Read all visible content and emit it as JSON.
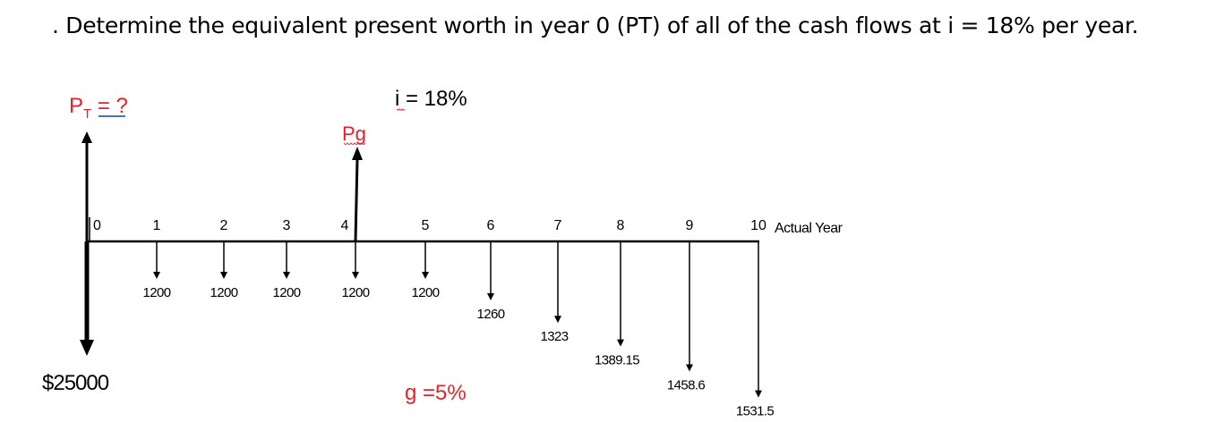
{
  "question": ". Determine the equivalent present worth in year 0 (PT) of all of the cash flows at i = 18% per year.",
  "diagram": {
    "pt_label": "P",
    "pt_subscript": "T",
    "pt_suffix": " = ?",
    "pg_label": "Pg",
    "interest_label": "i = 18%",
    "growth_label": "g =5%",
    "axis_caption": "Actual Year",
    "initial_cost": "$25000",
    "years": [
      "0",
      "1",
      "2",
      "3",
      "4",
      "5",
      "6",
      "7",
      "8",
      "9",
      "10"
    ],
    "cash_flows": [
      {
        "year": 1,
        "label": "1200",
        "amount": 1200
      },
      {
        "year": 2,
        "label": "1200",
        "amount": 1200
      },
      {
        "year": 3,
        "label": "1200",
        "amount": 1200
      },
      {
        "year": 4,
        "label": "1200",
        "amount": 1200
      },
      {
        "year": 5,
        "label": "1200",
        "amount": 1200
      },
      {
        "year": 6,
        "label": "1260",
        "amount": 1260
      },
      {
        "year": 7,
        "label": "1323",
        "amount": 1323
      },
      {
        "year": 8,
        "label": "1389.15",
        "amount": 1389.15
      },
      {
        "year": 9,
        "label": "1458.6",
        "amount": 1458.6
      },
      {
        "year": 10,
        "label": "1531.5",
        "amount": 1531.5
      }
    ],
    "colors": {
      "accent": "#e8202a",
      "underline": "#4472c4",
      "line": "#000000"
    }
  }
}
